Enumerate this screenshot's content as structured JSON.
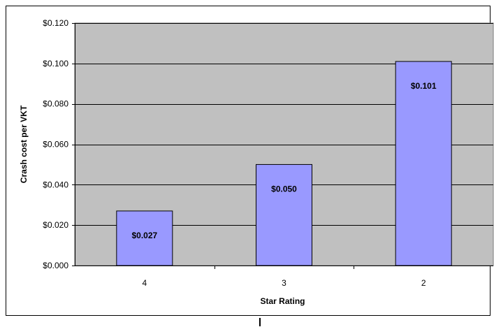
{
  "chart_data": {
    "type": "bar",
    "categories": [
      "4",
      "3",
      "2"
    ],
    "values": [
      0.027,
      0.05,
      0.101
    ],
    "data_labels": [
      "$0.027",
      "$0.050",
      "$0.101"
    ],
    "title": "",
    "xlabel": "Star Rating",
    "ylabel": "Crash cost per VKT",
    "ylim": [
      0,
      0.12
    ],
    "yticks": [
      0,
      0.02,
      0.04,
      0.06,
      0.08,
      0.1,
      0.12
    ],
    "ytick_labels": [
      "$0.000",
      "$0.020",
      "$0.040",
      "$0.060",
      "$0.080",
      "$0.100",
      "$0.120"
    ],
    "grid": true,
    "legend": false,
    "plot_background": "#c0c0c0",
    "bar_color": "#9999ff",
    "bar_border_color": "#000000"
  }
}
